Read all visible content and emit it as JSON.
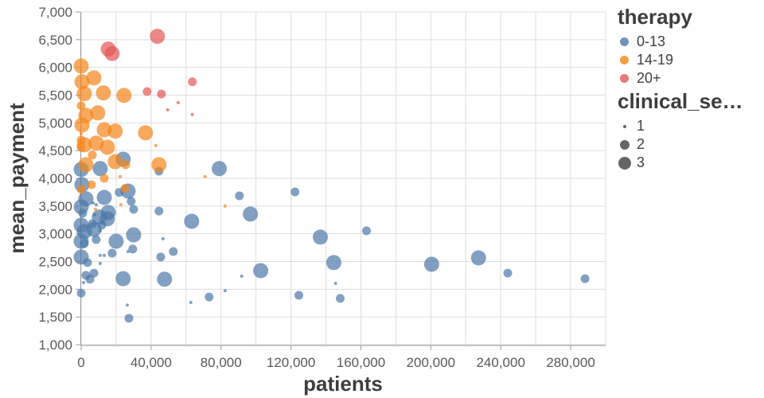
{
  "chart_data": {
    "type": "scatter",
    "xlabel": "patients",
    "ylabel": "mean_payment",
    "x_domain": [
      0,
      300000
    ],
    "y_domain": [
      1000,
      7000
    ],
    "x_ticks": [
      0,
      40000,
      80000,
      120000,
      160000,
      200000,
      240000,
      280000
    ],
    "x_grid_step": 20000,
    "y_ticks": [
      1000,
      1500,
      2000,
      2500,
      3000,
      3500,
      4000,
      4500,
      5000,
      5500,
      6000,
      6500,
      7000
    ],
    "size_radius_px": [
      2,
      5.5,
      9.5
    ],
    "legend": {
      "color_title": "therapy",
      "color_items": [
        {
          "label": "0-13",
          "color": "#4c78a8"
        },
        {
          "label": "14-19",
          "color": "#f58518"
        },
        {
          "label": "20+",
          "color": "#e45756"
        }
      ],
      "size_title": "clinical_se…",
      "size_dot_color": "#4a4a4a",
      "size_items": [
        {
          "label": "1",
          "size": 1
        },
        {
          "label": "2",
          "size": 2
        },
        {
          "label": "3",
          "size": 3
        }
      ]
    },
    "series": [
      {
        "name": "0-13",
        "color": "#4c78a8",
        "points": [
          [
            0,
            4160,
            3
          ],
          [
            10900,
            4175,
            3
          ],
          [
            24000,
            4345,
            3
          ],
          [
            44500,
            4130,
            2
          ],
          [
            79000,
            4175,
            3
          ],
          [
            450,
            3885,
            3
          ],
          [
            2700,
            3630,
            3
          ],
          [
            13200,
            3655,
            3
          ],
          [
            21800,
            3745,
            2
          ],
          [
            26800,
            3770,
            3
          ],
          [
            6800,
            3555,
            1
          ],
          [
            8600,
            3525,
            1
          ],
          [
            15500,
            3385,
            3
          ],
          [
            28600,
            3585,
            2
          ],
          [
            30000,
            3440,
            2
          ],
          [
            44500,
            3410,
            2
          ],
          [
            0,
            3485,
            3
          ],
          [
            10400,
            3300,
            3
          ],
          [
            15000,
            3270,
            3
          ],
          [
            63200,
            3225,
            3
          ],
          [
            11800,
            3155,
            2
          ],
          [
            0,
            3155,
            3
          ],
          [
            1800,
            3040,
            3
          ],
          [
            7300,
            3080,
            3
          ],
          [
            30000,
            2980,
            3
          ],
          [
            20000,
            2865,
            3
          ],
          [
            46800,
            2910,
            1
          ],
          [
            96800,
            3355,
            3
          ],
          [
            90500,
            3685,
            2
          ],
          [
            122300,
            3755,
            2
          ],
          [
            163200,
            3055,
            2
          ],
          [
            0,
            2865,
            3
          ],
          [
            1800,
            2825,
            2
          ],
          [
            8600,
            2895,
            2
          ],
          [
            29500,
            2725,
            2
          ],
          [
            136800,
            2940,
            3
          ],
          [
            17700,
            2650,
            2
          ],
          [
            0,
            2580,
            3
          ],
          [
            10900,
            2610,
            1
          ],
          [
            13200,
            2610,
            1
          ],
          [
            26800,
            2680,
            1
          ],
          [
            3600,
            2480,
            2
          ],
          [
            10900,
            2465,
            1
          ],
          [
            45500,
            2580,
            2
          ],
          [
            52700,
            2680,
            2
          ],
          [
            144500,
            2480,
            3
          ],
          [
            200500,
            2450,
            3
          ],
          [
            227300,
            2565,
            3
          ],
          [
            7300,
            2290,
            2
          ],
          [
            2700,
            2250,
            2
          ],
          [
            5000,
            2180,
            2
          ],
          [
            1400,
            2120,
            1
          ],
          [
            24000,
            2190,
            3
          ],
          [
            47700,
            2180,
            3
          ],
          [
            102700,
            2335,
            3
          ],
          [
            91800,
            2235,
            1
          ],
          [
            145500,
            2105,
            1
          ],
          [
            244000,
            2290,
            2
          ],
          [
            288200,
            2190,
            2
          ],
          [
            0,
            1930,
            2
          ],
          [
            82300,
            1975,
            1
          ],
          [
            73200,
            1860,
            2
          ],
          [
            124500,
            1890,
            2
          ],
          [
            148200,
            1835,
            2
          ],
          [
            62700,
            1760,
            1
          ],
          [
            26400,
            1715,
            1
          ],
          [
            27300,
            1475,
            2
          ],
          [
            7700,
            3340,
            1
          ],
          [
            900,
            3370,
            2
          ],
          [
            6400,
            3180,
            2
          ],
          [
            10900,
            3055,
            1
          ]
        ]
      },
      {
        "name": "14-19",
        "color": "#f58518",
        "points": [
          [
            0,
            6025,
            3
          ],
          [
            7300,
            5810,
            3
          ],
          [
            500,
            5740,
            3
          ],
          [
            1800,
            5525,
            3
          ],
          [
            12700,
            5540,
            3
          ],
          [
            24500,
            5495,
            3
          ],
          [
            0,
            5310,
            2
          ],
          [
            2700,
            5135,
            3
          ],
          [
            9500,
            5180,
            3
          ],
          [
            500,
            4960,
            3
          ],
          [
            13200,
            4875,
            3
          ],
          [
            19500,
            4850,
            3
          ],
          [
            0,
            4805,
            1
          ],
          [
            36800,
            4820,
            3
          ],
          [
            42700,
            4590,
            1
          ],
          [
            0,
            4690,
            2
          ],
          [
            0,
            4560,
            2
          ],
          [
            1800,
            4605,
            3
          ],
          [
            8600,
            4635,
            3
          ],
          [
            15000,
            4560,
            3
          ],
          [
            6400,
            4420,
            2
          ],
          [
            2700,
            4245,
            3
          ],
          [
            19500,
            4300,
            3
          ],
          [
            25500,
            4245,
            2
          ],
          [
            44500,
            4245,
            3
          ],
          [
            13200,
            4000,
            2
          ],
          [
            22300,
            4030,
            1
          ],
          [
            5900,
            3885,
            2
          ],
          [
            0,
            3800,
            2
          ],
          [
            25000,
            3815,
            2
          ],
          [
            8200,
            3440,
            1
          ],
          [
            22700,
            3525,
            1
          ],
          [
            70900,
            4030,
            1
          ],
          [
            82300,
            3500,
            1
          ]
        ]
      },
      {
        "name": "20+",
        "color": "#e45756",
        "points": [
          [
            15500,
            6330,
            3
          ],
          [
            17700,
            6250,
            3
          ],
          [
            43600,
            6560,
            3
          ],
          [
            37700,
            5565,
            2
          ],
          [
            45900,
            5520,
            2
          ],
          [
            63600,
            5740,
            2
          ],
          [
            55500,
            5365,
            1
          ],
          [
            49500,
            5235,
            1
          ],
          [
            63600,
            5150,
            1
          ]
        ]
      }
    ],
    "style": {
      "grid_color": "#dddddd",
      "axis_line_color": "#999999",
      "tick_color": "#999999",
      "point_opacity": 0.7
    }
  }
}
